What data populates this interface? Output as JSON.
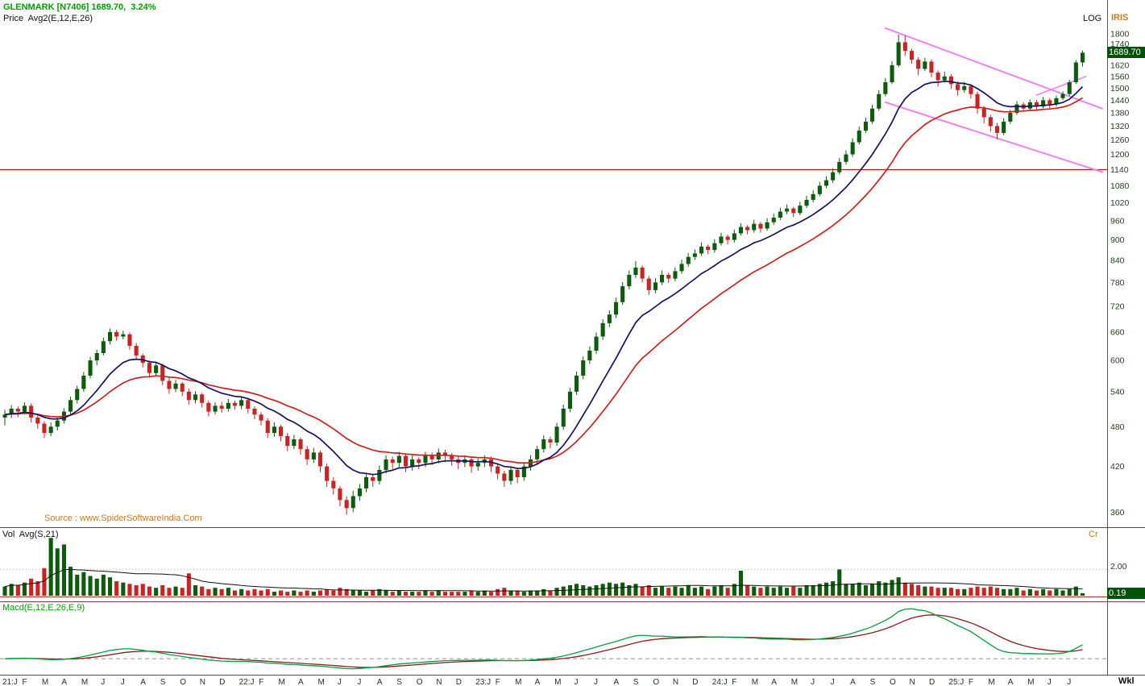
{
  "header": {
    "symbol_line": "GLENMARK [N7406] 1689.70,  3.24%",
    "study_line": "Price  Avg2(E,12,E,26)",
    "scale_label": "LOG",
    "app_label": "IRIS"
  },
  "price_panel": {
    "last_price_label": "1689.70",
    "source_text": "Source : www.SpiderSoftwareIndia.Com"
  },
  "volume_panel": {
    "title": "Vol  Avg(S,21)",
    "unit_label": "Cr",
    "grid_value": "2.00",
    "last_value_label": "0.19"
  },
  "macd_panel": {
    "title": "Macd(E,12,E,26,E,9)"
  },
  "xaxis": {
    "period_label": "Wkl"
  },
  "colors": {
    "up_candle": "#0d5c0d",
    "down_candle": "#cc2222",
    "ema_fast": "#14145f",
    "ema_slow": "#cc2020",
    "trendline": "#ee82ee",
    "hline": "#e00000",
    "macd_line": "#00a040",
    "macd_signal": "#8b1a1a",
    "vol_avg": "#111111",
    "badge_bg": "#005208",
    "header_green": "#00a000",
    "accent_orange": "#c87a1e"
  },
  "chart_data": {
    "type": "candlestick",
    "symbol": "GLENMARK [N7406]",
    "last_price": 1689.7,
    "change_pct": "3.24%",
    "timeframe_label": "Wkl",
    "scale": "LOG",
    "overlays": {
      "ema_fast": 12,
      "ema_slow": 26
    },
    "macd_params": [
      12,
      26,
      9
    ],
    "vol_avg_period": 21,
    "volume_axis_tick": 2.0,
    "last_volume_cr": 0.19,
    "candles_per_month": 3,
    "price_axis_ticks": [
      1800,
      1740,
      1680,
      1620,
      1560,
      1500,
      1440,
      1380,
      1320,
      1260,
      1200,
      1140,
      1080,
      1020,
      960,
      900,
      840,
      780,
      720,
      660,
      600,
      540,
      480,
      420,
      360
    ],
    "x_months": [
      "21:J",
      "F",
      "M",
      "A",
      "M",
      "J",
      "J",
      "A",
      "S",
      "O",
      "N",
      "D",
      "22:J",
      "F",
      "M",
      "A",
      "M",
      "J",
      "J",
      "A",
      "S",
      "O",
      "N",
      "D",
      "23:J",
      "F",
      "M",
      "A",
      "M",
      "J",
      "J",
      "A",
      "S",
      "O",
      "N",
      "D",
      "24:J",
      "F",
      "M",
      "A",
      "M",
      "J",
      "J",
      "A",
      "S",
      "O",
      "N",
      "D",
      "25:J",
      "F",
      "M",
      "A",
      "M",
      "J",
      "J"
    ],
    "annotations": {
      "horizontal_line_price": 1140,
      "channel_upper": [
        134,
        1835,
        167,
        1400
      ],
      "channel_lower": [
        134,
        1430,
        167,
        1131
      ],
      "support_segment": [
        157,
        1465,
        164.5,
        1560
      ]
    },
    "candles_ohlc": [
      [
        495,
        508,
        482,
        500
      ],
      [
        500,
        516,
        494,
        510
      ],
      [
        510,
        514,
        496,
        505
      ],
      [
        505,
        521,
        500,
        515
      ],
      [
        515,
        519,
        487,
        495
      ],
      [
        495,
        501,
        477,
        485
      ],
      [
        485,
        489,
        462,
        470
      ],
      [
        470,
        487,
        465,
        480
      ],
      [
        480,
        497,
        474,
        490
      ],
      [
        490,
        511,
        485,
        505
      ],
      [
        505,
        531,
        500,
        525
      ],
      [
        525,
        551,
        519,
        545
      ],
      [
        545,
        577,
        540,
        570
      ],
      [
        570,
        607,
        565,
        600
      ],
      [
        600,
        622,
        590,
        615
      ],
      [
        615,
        648,
        610,
        640
      ],
      [
        640,
        668,
        633,
        660
      ],
      [
        660,
        665,
        641,
        650
      ],
      [
        650,
        663,
        644,
        655
      ],
      [
        655,
        659,
        622,
        630
      ],
      [
        630,
        636,
        601,
        610
      ],
      [
        610,
        614,
        586,
        595
      ],
      [
        595,
        600,
        566,
        575
      ],
      [
        575,
        597,
        569,
        590
      ],
      [
        590,
        593,
        552,
        560
      ],
      [
        560,
        566,
        536,
        545
      ],
      [
        545,
        562,
        539,
        555
      ],
      [
        555,
        558,
        532,
        540
      ],
      [
        540,
        546,
        517,
        525
      ],
      [
        525,
        541,
        519,
        535
      ],
      [
        535,
        538,
        512,
        520
      ],
      [
        520,
        524,
        497,
        505
      ],
      [
        505,
        521,
        500,
        515
      ],
      [
        515,
        522,
        503,
        510
      ],
      [
        510,
        527,
        505,
        520
      ],
      [
        520,
        524,
        508,
        515
      ],
      [
        515,
        531,
        509,
        525
      ],
      [
        525,
        529,
        502,
        510
      ],
      [
        510,
        514,
        492,
        500
      ],
      [
        500,
        504,
        482,
        490
      ],
      [
        490,
        494,
        462,
        470
      ],
      [
        470,
        487,
        464,
        480
      ],
      [
        480,
        483,
        457,
        465
      ],
      [
        465,
        470,
        442,
        450
      ],
      [
        450,
        467,
        445,
        460
      ],
      [
        460,
        463,
        437,
        445
      ],
      [
        445,
        450,
        422,
        430
      ],
      [
        430,
        447,
        425,
        440
      ],
      [
        440,
        443,
        412,
        420
      ],
      [
        420,
        424,
        392,
        400
      ],
      [
        400,
        405,
        382,
        390
      ],
      [
        390,
        393,
        367,
        375
      ],
      [
        375,
        380,
        357,
        365
      ],
      [
        365,
        387,
        360,
        380
      ],
      [
        380,
        396,
        374,
        390
      ],
      [
        390,
        411,
        385,
        405
      ],
      [
        405,
        410,
        392,
        400
      ],
      [
        400,
        421,
        395,
        415
      ],
      [
        415,
        436,
        410,
        430
      ],
      [
        430,
        434,
        416,
        425
      ],
      [
        425,
        441,
        419,
        435
      ],
      [
        435,
        439,
        412,
        420
      ],
      [
        420,
        436,
        414,
        430
      ],
      [
        430,
        433,
        416,
        425
      ],
      [
        425,
        441,
        419,
        435
      ],
      [
        435,
        440,
        422,
        430
      ],
      [
        430,
        446,
        424,
        440
      ],
      [
        440,
        444,
        426,
        435
      ],
      [
        435,
        439,
        421,
        430
      ],
      [
        430,
        434,
        416,
        425
      ],
      [
        425,
        436,
        419,
        430
      ],
      [
        430,
        433,
        411,
        420
      ],
      [
        420,
        431,
        414,
        425
      ],
      [
        425,
        436,
        419,
        430
      ],
      [
        430,
        434,
        412,
        420
      ],
      [
        420,
        423,
        402,
        410
      ],
      [
        410,
        414,
        392,
        400
      ],
      [
        400,
        420,
        395,
        415
      ],
      [
        415,
        418,
        397,
        405
      ],
      [
        405,
        426,
        400,
        420
      ],
      [
        420,
        436,
        414,
        430
      ],
      [
        430,
        450,
        424,
        445
      ],
      [
        445,
        466,
        440,
        460
      ],
      [
        460,
        464,
        446,
        455
      ],
      [
        455,
        486,
        450,
        480
      ],
      [
        480,
        517,
        475,
        510
      ],
      [
        510,
        547,
        504,
        540
      ],
      [
        540,
        578,
        534,
        570
      ],
      [
        570,
        608,
        563,
        600
      ],
      [
        600,
        629,
        593,
        620
      ],
      [
        620,
        659,
        613,
        650
      ],
      [
        650,
        689,
        643,
        680
      ],
      [
        680,
        710,
        671,
        700
      ],
      [
        700,
        741,
        692,
        730
      ],
      [
        730,
        781,
        723,
        770
      ],
      [
        770,
        812,
        762,
        800
      ],
      [
        800,
        838,
        792,
        820
      ],
      [
        820,
        826,
        780,
        790
      ],
      [
        790,
        797,
        748,
        760
      ],
      [
        760,
        791,
        752,
        780
      ],
      [
        780,
        812,
        773,
        800
      ],
      [
        800,
        806,
        779,
        790
      ],
      [
        790,
        821,
        783,
        810
      ],
      [
        810,
        842,
        803,
        830
      ],
      [
        830,
        861,
        822,
        850
      ],
      [
        850,
        872,
        841,
        860
      ],
      [
        860,
        892,
        853,
        880
      ],
      [
        880,
        886,
        858,
        870
      ],
      [
        870,
        902,
        862,
        890
      ],
      [
        890,
        922,
        883,
        910
      ],
      [
        910,
        916,
        886,
        900
      ],
      [
        900,
        932,
        892,
        920
      ],
      [
        920,
        952,
        913,
        940
      ],
      [
        940,
        946,
        917,
        930
      ],
      [
        930,
        963,
        922,
        950
      ],
      [
        950,
        956,
        922,
        935
      ],
      [
        935,
        968,
        928,
        955
      ],
      [
        955,
        983,
        947,
        970
      ],
      [
        970,
        1003,
        962,
        990
      ],
      [
        990,
        1014,
        981,
        1000
      ],
      [
        1000,
        1006,
        972,
        985
      ],
      [
        985,
        1023,
        978,
        1010
      ],
      [
        1010,
        1044,
        1002,
        1030
      ],
      [
        1030,
        1064,
        1021,
        1050
      ],
      [
        1050,
        1094,
        1042,
        1080
      ],
      [
        1080,
        1115,
        1071,
        1100
      ],
      [
        1100,
        1145,
        1090,
        1130
      ],
      [
        1130,
        1186,
        1121,
        1170
      ],
      [
        1170,
        1216,
        1160,
        1200
      ],
      [
        1200,
        1267,
        1190,
        1250
      ],
      [
        1250,
        1318,
        1241,
        1300
      ],
      [
        1300,
        1358,
        1290,
        1340
      ],
      [
        1340,
        1419,
        1330,
        1400
      ],
      [
        1400,
        1490,
        1390,
        1470
      ],
      [
        1470,
        1551,
        1459,
        1530
      ],
      [
        1530,
        1642,
        1520,
        1620
      ],
      [
        1620,
        1795,
        1610,
        1750
      ],
      [
        1750,
        1790,
        1672,
        1700
      ],
      [
        1700,
        1712,
        1628,
        1650
      ],
      [
        1650,
        1664,
        1566,
        1600
      ],
      [
        1600,
        1661,
        1588,
        1640
      ],
      [
        1640,
        1652,
        1556,
        1580
      ],
      [
        1580,
        1592,
        1508,
        1540
      ],
      [
        1540,
        1585,
        1528,
        1560
      ],
      [
        1560,
        1572,
        1496,
        1520
      ],
      [
        1520,
        1534,
        1462,
        1490
      ],
      [
        1490,
        1531,
        1477,
        1510
      ],
      [
        1510,
        1521,
        1448,
        1470
      ],
      [
        1470,
        1482,
        1376,
        1400
      ],
      [
        1400,
        1412,
        1332,
        1360
      ],
      [
        1360,
        1371,
        1296,
        1320
      ],
      [
        1320,
        1334,
        1262,
        1290
      ],
      [
        1290,
        1355,
        1280,
        1340
      ],
      [
        1340,
        1394,
        1330,
        1380
      ],
      [
        1380,
        1436,
        1371,
        1420
      ],
      [
        1420,
        1431,
        1387,
        1400
      ],
      [
        1400,
        1444,
        1391,
        1430
      ],
      [
        1430,
        1441,
        1392,
        1410
      ],
      [
        1410,
        1456,
        1401,
        1440
      ],
      [
        1440,
        1451,
        1402,
        1420
      ],
      [
        1420,
        1463,
        1411,
        1450
      ],
      [
        1450,
        1483,
        1440,
        1470
      ],
      [
        1470,
        1542,
        1461,
        1530
      ],
      [
        1530,
        1648,
        1521,
        1635
      ],
      [
        1635,
        1702,
        1612,
        1689.7
      ]
    ],
    "volumes_cr": [
      0.7,
      0.9,
      0.8,
      1.0,
      1.3,
      1.1,
      2.1,
      4.4,
      3.6,
      3.9,
      2.2,
      1.6,
      1.8,
      1.5,
      1.3,
      1.6,
      1.4,
      1.1,
      1.0,
      0.9,
      0.8,
      0.9,
      0.7,
      0.6,
      0.8,
      0.6,
      0.7,
      0.6,
      1.7,
      0.8,
      0.7,
      0.5,
      0.6,
      0.5,
      0.6,
      0.4,
      0.5,
      0.4,
      0.5,
      0.4,
      0.5,
      0.3,
      0.4,
      0.3,
      0.4,
      0.3,
      0.4,
      0.3,
      0.4,
      0.5,
      0.4,
      0.6,
      0.5,
      0.4,
      0.4,
      0.3,
      0.4,
      0.5,
      0.4,
      0.3,
      0.4,
      0.3,
      0.3,
      0.3,
      0.4,
      0.3,
      0.4,
      0.3,
      0.3,
      0.3,
      0.3,
      0.4,
      0.3,
      0.4,
      0.3,
      0.5,
      0.6,
      0.4,
      0.4,
      0.3,
      0.4,
      0.4,
      0.5,
      0.4,
      0.6,
      0.7,
      0.8,
      0.9,
      0.8,
      0.7,
      0.8,
      0.9,
      1.0,
      0.9,
      1.0,
      0.8,
      0.9,
      0.7,
      0.8,
      0.6,
      0.7,
      0.6,
      0.7,
      0.6,
      0.8,
      0.6,
      0.7,
      0.5,
      0.7,
      0.8,
      0.6,
      0.9,
      1.9,
      0.8,
      0.7,
      0.6,
      0.7,
      0.6,
      0.7,
      0.6,
      0.7,
      0.6,
      0.8,
      0.8,
      0.9,
      1.0,
      1.1,
      2.0,
      0.9,
      0.9,
      1.0,
      0.8,
      0.9,
      1.1,
      1.0,
      1.2,
      1.4,
      1.0,
      0.9,
      0.8,
      0.7,
      0.7,
      0.6,
      0.6,
      0.6,
      0.5,
      0.5,
      0.6,
      0.7,
      0.6,
      0.7,
      0.6,
      0.5,
      0.5,
      0.6,
      0.4,
      0.5,
      0.4,
      0.5,
      0.4,
      0.5,
      0.4,
      0.5,
      0.7,
      0.19
    ]
  }
}
